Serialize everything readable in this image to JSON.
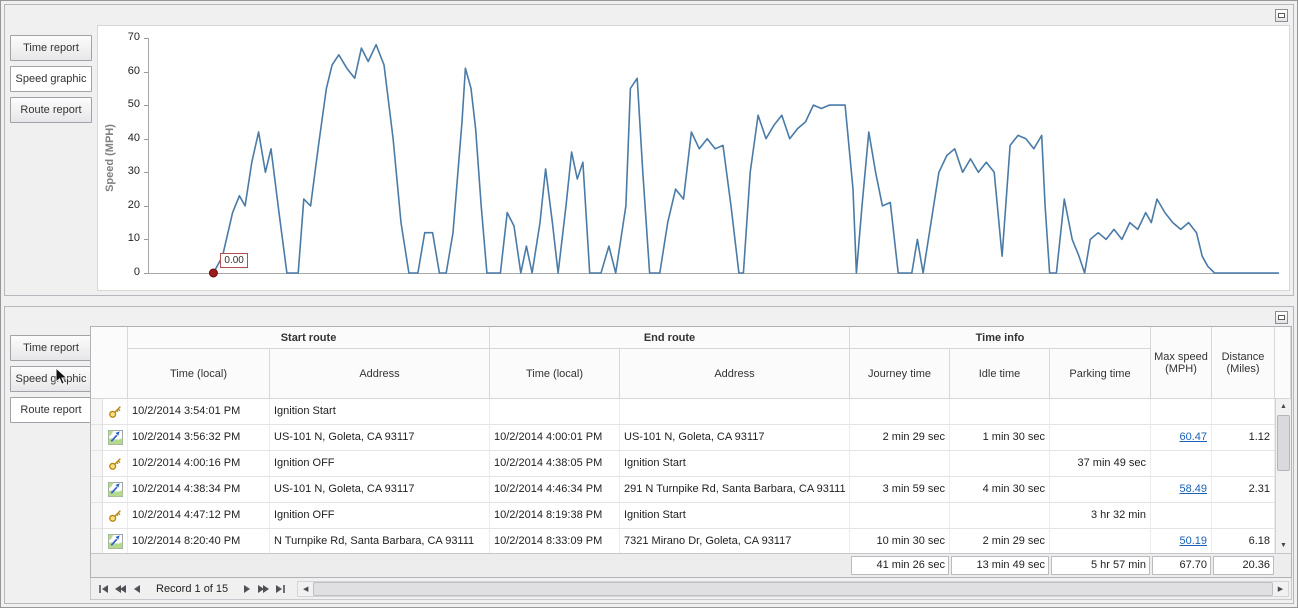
{
  "colors": {
    "chart_line": "#4a7ba7",
    "marker": "#9b1c1c",
    "link": "#1a62b5"
  },
  "top_panel": {
    "tabs": [
      {
        "label": "Time report",
        "selected": false
      },
      {
        "label": "Speed graphic",
        "selected": true
      },
      {
        "label": "Route report",
        "selected": false
      }
    ]
  },
  "chart_data": {
    "type": "line",
    "title": "",
    "xlabel": "",
    "ylabel": "Speed (MPH)",
    "ylim": [
      0,
      70
    ],
    "yticks": [
      0,
      10,
      20,
      30,
      40,
      50,
      60,
      70
    ],
    "grid": false,
    "legend": false,
    "line_color": "#4a7ba7",
    "annotation": {
      "label": "0.00",
      "x_frac": 0.057,
      "value": 0
    },
    "points": [
      [
        0.057,
        0
      ],
      [
        0.065,
        5
      ],
      [
        0.074,
        18
      ],
      [
        0.08,
        23
      ],
      [
        0.085,
        20
      ],
      [
        0.091,
        33
      ],
      [
        0.097,
        42
      ],
      [
        0.103,
        30
      ],
      [
        0.108,
        37
      ],
      [
        0.115,
        18
      ],
      [
        0.122,
        0
      ],
      [
        0.132,
        0
      ],
      [
        0.137,
        22
      ],
      [
        0.143,
        20
      ],
      [
        0.15,
        38
      ],
      [
        0.157,
        55
      ],
      [
        0.162,
        62
      ],
      [
        0.168,
        65
      ],
      [
        0.175,
        61
      ],
      [
        0.182,
        58
      ],
      [
        0.188,
        67
      ],
      [
        0.194,
        63
      ],
      [
        0.201,
        68
      ],
      [
        0.208,
        62
      ],
      [
        0.216,
        40
      ],
      [
        0.223,
        15
      ],
      [
        0.23,
        0
      ],
      [
        0.238,
        0
      ],
      [
        0.244,
        12
      ],
      [
        0.251,
        12
      ],
      [
        0.257,
        0
      ],
      [
        0.263,
        0
      ],
      [
        0.269,
        12
      ],
      [
        0.277,
        45
      ],
      [
        0.28,
        61
      ],
      [
        0.285,
        55
      ],
      [
        0.289,
        43
      ],
      [
        0.294,
        20
      ],
      [
        0.299,
        0
      ],
      [
        0.311,
        0
      ],
      [
        0.317,
        18
      ],
      [
        0.323,
        14
      ],
      [
        0.329,
        0
      ],
      [
        0.334,
        8
      ],
      [
        0.339,
        0
      ],
      [
        0.346,
        15
      ],
      [
        0.351,
        31
      ],
      [
        0.357,
        15
      ],
      [
        0.362,
        0
      ],
      [
        0.369,
        20
      ],
      [
        0.374,
        36
      ],
      [
        0.379,
        28
      ],
      [
        0.384,
        33
      ],
      [
        0.39,
        0
      ],
      [
        0.4,
        0
      ],
      [
        0.407,
        8
      ],
      [
        0.413,
        0
      ],
      [
        0.422,
        20
      ],
      [
        0.426,
        55
      ],
      [
        0.432,
        58
      ],
      [
        0.437,
        30
      ],
      [
        0.443,
        0
      ],
      [
        0.452,
        0
      ],
      [
        0.459,
        15
      ],
      [
        0.466,
        25
      ],
      [
        0.473,
        22
      ],
      [
        0.48,
        42
      ],
      [
        0.487,
        37
      ],
      [
        0.494,
        40
      ],
      [
        0.501,
        37
      ],
      [
        0.508,
        38
      ],
      [
        0.515,
        20
      ],
      [
        0.522,
        0
      ],
      [
        0.526,
        0
      ],
      [
        0.532,
        30
      ],
      [
        0.539,
        47
      ],
      [
        0.546,
        40
      ],
      [
        0.553,
        44
      ],
      [
        0.56,
        47
      ],
      [
        0.567,
        40
      ],
      [
        0.574,
        43
      ],
      [
        0.581,
        45
      ],
      [
        0.588,
        50
      ],
      [
        0.595,
        49
      ],
      [
        0.602,
        50
      ],
      [
        0.609,
        50
      ],
      [
        0.616,
        50
      ],
      [
        0.623,
        25
      ],
      [
        0.626,
        0
      ],
      [
        0.631,
        20
      ],
      [
        0.637,
        42
      ],
      [
        0.643,
        30
      ],
      [
        0.649,
        20
      ],
      [
        0.656,
        21
      ],
      [
        0.663,
        0
      ],
      [
        0.675,
        0
      ],
      [
        0.68,
        10
      ],
      [
        0.685,
        0
      ],
      [
        0.692,
        15
      ],
      [
        0.699,
        30
      ],
      [
        0.706,
        35
      ],
      [
        0.713,
        37
      ],
      [
        0.72,
        30
      ],
      [
        0.727,
        34
      ],
      [
        0.734,
        30
      ],
      [
        0.741,
        33
      ],
      [
        0.748,
        30
      ],
      [
        0.755,
        5
      ],
      [
        0.762,
        38
      ],
      [
        0.769,
        41
      ],
      [
        0.776,
        40
      ],
      [
        0.783,
        37
      ],
      [
        0.79,
        41
      ],
      [
        0.793,
        20
      ],
      [
        0.797,
        0
      ],
      [
        0.803,
        0
      ],
      [
        0.81,
        22
      ],
      [
        0.817,
        10
      ],
      [
        0.823,
        5
      ],
      [
        0.828,
        0
      ],
      [
        0.833,
        10
      ],
      [
        0.84,
        12
      ],
      [
        0.847,
        10
      ],
      [
        0.854,
        13
      ],
      [
        0.861,
        10
      ],
      [
        0.868,
        15
      ],
      [
        0.875,
        13
      ],
      [
        0.882,
        18
      ],
      [
        0.887,
        15
      ],
      [
        0.892,
        22
      ],
      [
        0.899,
        18
      ],
      [
        0.906,
        15
      ],
      [
        0.913,
        13
      ],
      [
        0.92,
        15
      ],
      [
        0.927,
        12
      ],
      [
        0.932,
        5
      ],
      [
        0.937,
        2
      ],
      [
        0.943,
        0
      ],
      [
        1.0,
        0
      ]
    ]
  },
  "bottom_panel": {
    "tabs": [
      {
        "label": "Time report",
        "selected": false
      },
      {
        "label": "Speed graphic",
        "selected": false
      },
      {
        "label": "Route report",
        "selected": true
      }
    ],
    "table": {
      "groups": [
        {
          "label": "Start route"
        },
        {
          "label": "End route"
        },
        {
          "label": "Time info"
        }
      ],
      "columns": [
        "Time (local)",
        "Address",
        "Time (local)",
        "Address",
        "Journey time",
        "Idle time",
        "Parking time"
      ],
      "max_speed_header": "Max speed\n(MPH)",
      "distance_header": "Distance\n(Miles)",
      "rows": [
        {
          "icon": "key",
          "start_time": "10/2/2014 3:54:01 PM",
          "start_address": "Ignition Start",
          "end_time": "",
          "end_address": "",
          "journey_time": "",
          "idle_time": "",
          "parking_time": "",
          "max_speed": "",
          "max_speed_link": false,
          "distance": ""
        },
        {
          "icon": "route",
          "start_time": "10/2/2014 3:56:32 PM",
          "start_address": "US-101 N, Goleta, CA 93117",
          "end_time": "10/2/2014 4:00:01 PM",
          "end_address": "US-101 N, Goleta, CA 93117",
          "journey_time": "2 min 29 sec",
          "idle_time": "1 min 30 sec",
          "parking_time": "",
          "max_speed": "60.47",
          "max_speed_link": true,
          "distance": "1.12"
        },
        {
          "icon": "key",
          "start_time": "10/2/2014 4:00:16 PM",
          "start_address": "Ignition OFF",
          "end_time": "10/2/2014 4:38:05 PM",
          "end_address": "Ignition Start",
          "journey_time": "",
          "idle_time": "",
          "parking_time": "37 min 49 sec",
          "max_speed": "",
          "max_speed_link": false,
          "distance": ""
        },
        {
          "icon": "route",
          "start_time": "10/2/2014 4:38:34 PM",
          "start_address": "US-101 N, Goleta, CA 93117",
          "end_time": "10/2/2014 4:46:34 PM",
          "end_address": "291 N Turnpike Rd, Santa Barbara, CA 93111",
          "journey_time": "3 min 59 sec",
          "idle_time": "4 min 30 sec",
          "parking_time": "",
          "max_speed": "58.49",
          "max_speed_link": true,
          "distance": "2.31"
        },
        {
          "icon": "key",
          "start_time": "10/2/2014 4:47:12 PM",
          "start_address": "Ignition OFF",
          "end_time": "10/2/2014 8:19:38 PM",
          "end_address": "Ignition Start",
          "journey_time": "",
          "idle_time": "",
          "parking_time": "3 hr 32 min",
          "max_speed": "",
          "max_speed_link": false,
          "distance": ""
        },
        {
          "icon": "route",
          "start_time": "10/2/2014 8:20:40 PM",
          "start_address": "N Turnpike Rd, Santa Barbara, CA 93111",
          "end_time": "10/2/2014 8:33:09 PM",
          "end_address": "7321 Mirano Dr, Goleta, CA 93117",
          "journey_time": "10 min 30 sec",
          "idle_time": "2 min 29 sec",
          "parking_time": "",
          "max_speed": "50.19",
          "max_speed_link": true,
          "distance": "6.18"
        }
      ],
      "summary": {
        "journey_time": "41 min 26 sec",
        "idle_time": "13 min 49 sec",
        "parking_time": "5 hr 57 min",
        "max_speed": "67.70",
        "distance": "20.36"
      }
    },
    "navigator": {
      "label": "Record 1 of 15",
      "buttons": [
        "first-record",
        "previous-page",
        "previous-record",
        "next-record",
        "next-page",
        "last-record"
      ]
    }
  }
}
